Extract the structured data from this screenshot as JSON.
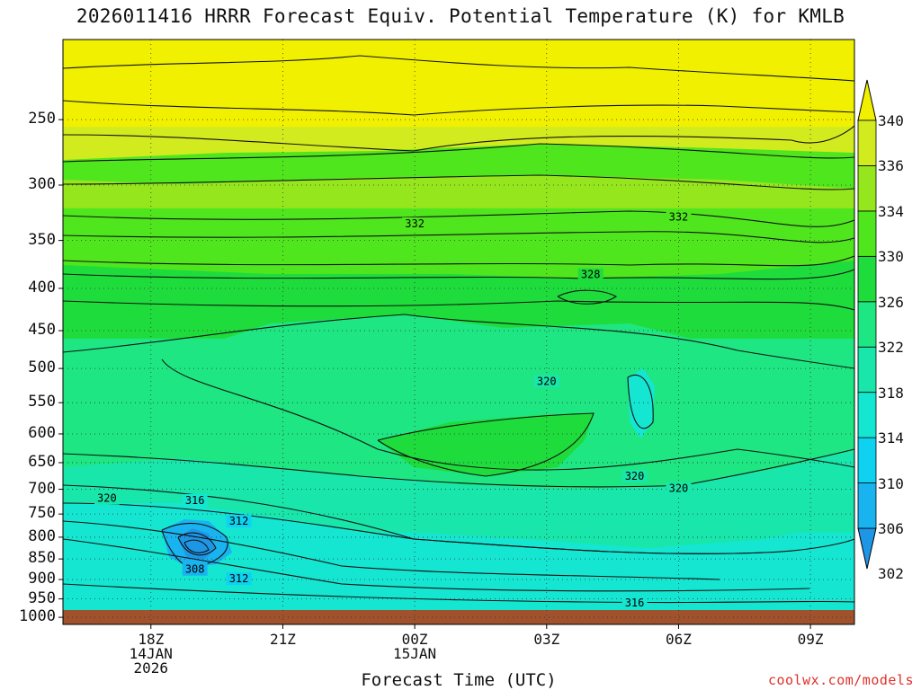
{
  "title": "2026011416 HRRR Forecast Equiv. Potential Temperature (K) for KMLB",
  "xlabel": "Forecast Time (UTC)",
  "credit": "coolwx.com/models",
  "chart_data": {
    "type": "heatmap",
    "title": "2026011416 HRRR Forecast Equiv. Potential Temperature (K) for KMLB",
    "xlabel": "Forecast Time (UTC)",
    "ylabel": "",
    "y_scale": "log (pressure, inverted)",
    "x_range": [
      "2026-01-14 16Z",
      "2026-01-15 10Z"
    ],
    "y_range_hPa": [
      1020,
      200
    ],
    "grid": "dotted",
    "x_ticks": [
      {
        "time": "2026-01-14 18Z",
        "label": "18Z",
        "label2": "14JAN",
        "label3": "2026"
      },
      {
        "time": "2026-01-14 21Z",
        "label": "21Z",
        "label2": "",
        "label3": ""
      },
      {
        "time": "2026-01-15 00Z",
        "label": "00Z",
        "label2": "15JAN",
        "label3": ""
      },
      {
        "time": "2026-01-15 03Z",
        "label": "03Z",
        "label2": "",
        "label3": ""
      },
      {
        "time": "2026-01-15 06Z",
        "label": "06Z",
        "label2": "",
        "label3": ""
      },
      {
        "time": "2026-01-15 09Z",
        "label": "09Z",
        "label2": "",
        "label3": ""
      }
    ],
    "y_ticks": [
      "250",
      "300",
      "350",
      "400",
      "450",
      "500",
      "550",
      "600",
      "650",
      "700",
      "750",
      "800",
      "850",
      "900",
      "950",
      "1000"
    ],
    "colorbar": {
      "labels": [
        "340",
        "336",
        "334",
        "330",
        "326",
        "322",
        "318",
        "314",
        "310",
        "306",
        "302"
      ],
      "levels": [
        302,
        306,
        310,
        314,
        318,
        322,
        326,
        330,
        334,
        336,
        340
      ],
      "colors": [
        "#1e96e6",
        "#19b4f0",
        "#0fd2f0",
        "#14e6d2",
        "#19e6aa",
        "#1ee682",
        "#1edc3c",
        "#50e61e",
        "#96e61e",
        "#d2eb1e",
        "#f0f000"
      ]
    },
    "contour_labels": [
      {
        "text": "332",
        "time": "2026-01-15 00Z",
        "p": 334
      },
      {
        "text": "332",
        "time": "2026-01-15 06Z",
        "p": 328
      },
      {
        "text": "328",
        "time": "2026-01-15 04Z",
        "p": 385
      },
      {
        "text": "320",
        "time": "2026-01-15 03Z",
        "p": 518
      },
      {
        "text": "320",
        "time": "2026-01-15 05Z",
        "p": 675
      },
      {
        "text": "320",
        "time": "2026-01-15 06Z",
        "p": 698
      },
      {
        "text": "320",
        "time": "2026-01-14 17Z",
        "p": 718
      },
      {
        "text": "316",
        "time": "2026-01-14 19Z",
        "p": 722
      },
      {
        "text": "312",
        "time": "2026-01-14 20Z",
        "p": 765
      },
      {
        "text": "308",
        "time": "2026-01-14 19Z",
        "p": 875
      },
      {
        "text": "312",
        "time": "2026-01-14 20Z",
        "p": 898
      },
      {
        "text": "316",
        "time": "2026-01-15 05Z",
        "p": 960
      }
    ],
    "field_description_approx": [
      {
        "p_range": [
          200,
          260
        ],
        "value_K": 338
      },
      {
        "p_range": [
          260,
          330
        ],
        "value_K": 334
      },
      {
        "p_range": [
          330,
          400
        ],
        "value_K": 328
      },
      {
        "p_range": [
          400,
          650
        ],
        "value_K": 322
      },
      {
        "p_range": [
          650,
          800
        ],
        "value_K": 318
      },
      {
        "p_range": [
          800,
          1000
        ],
        "value_K": 314
      },
      {
        "p_range": [
          820,
          880
        ],
        "time": "2026-01-14 19Z",
        "value_K": 302
      }
    ]
  }
}
